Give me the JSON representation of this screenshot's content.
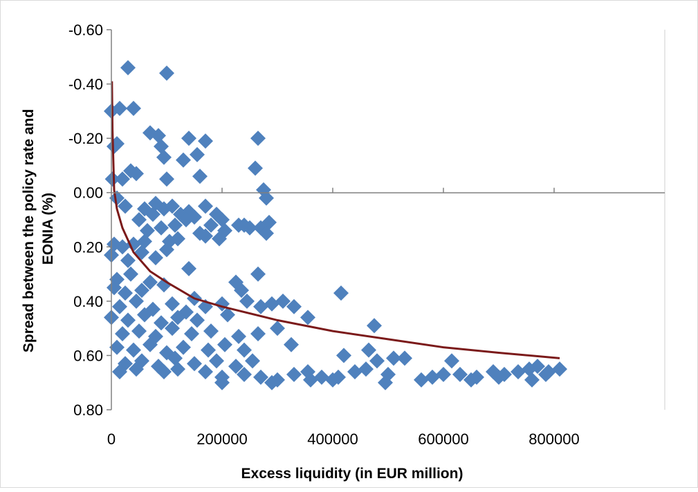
{
  "chart_data": {
    "type": "scatter",
    "xlabel": "Excess liquidity (in EUR million)",
    "ylabel": "Spread between the policy rate and EONIA (%)",
    "ylabel_lines": [
      "Spread between the policy rate and",
      "EONIA (%)"
    ],
    "x_ticks": [
      "0",
      "200000",
      "400000",
      "600000",
      "800000"
    ],
    "y_ticks": [
      "-0.60",
      "-0.40",
      "-0.20",
      "0.00",
      "0.20",
      "0.40",
      "0.60",
      "0.80"
    ],
    "xlim": [
      0,
      1000000
    ],
    "ylim": [
      -0.6,
      0.8
    ],
    "y_axis_inverted": true,
    "grid": false,
    "legend": "none",
    "colors": {
      "markers": "#4f81bd",
      "trendline": "#7b1a1a"
    },
    "series": [
      {
        "marker": "diamond",
        "points": [
          [
            30000,
            -0.46
          ],
          [
            100000,
            -0.44
          ],
          [
            0,
            -0.3
          ],
          [
            15000,
            -0.31
          ],
          [
            40000,
            -0.31
          ],
          [
            70000,
            -0.22
          ],
          [
            85000,
            -0.21
          ],
          [
            140000,
            -0.2
          ],
          [
            170000,
            -0.19
          ],
          [
            265000,
            -0.2
          ],
          [
            5000,
            -0.17
          ],
          [
            10000,
            -0.18
          ],
          [
            90000,
            -0.17
          ],
          [
            95000,
            -0.13
          ],
          [
            130000,
            -0.12
          ],
          [
            155000,
            -0.14
          ],
          [
            260000,
            -0.09
          ],
          [
            2000,
            -0.05
          ],
          [
            20000,
            -0.05
          ],
          [
            35000,
            -0.08
          ],
          [
            45000,
            -0.07
          ],
          [
            100000,
            -0.05
          ],
          [
            160000,
            -0.06
          ],
          [
            275000,
            -0.01
          ],
          [
            10000,
            0.02
          ],
          [
            25000,
            0.05
          ],
          [
            60000,
            0.06
          ],
          [
            80000,
            0.04
          ],
          [
            95000,
            0.06
          ],
          [
            110000,
            0.05
          ],
          [
            125000,
            0.08
          ],
          [
            140000,
            0.07
          ],
          [
            170000,
            0.05
          ],
          [
            190000,
            0.08
          ],
          [
            280000,
            0.02
          ],
          [
            50000,
            0.1
          ],
          [
            75000,
            0.08
          ],
          [
            115000,
            0.12
          ],
          [
            135000,
            0.1
          ],
          [
            150000,
            0.09
          ],
          [
            180000,
            0.12
          ],
          [
            200000,
            0.1
          ],
          [
            230000,
            0.12
          ],
          [
            250000,
            0.13
          ],
          [
            285000,
            0.11
          ],
          [
            65000,
            0.14
          ],
          [
            90000,
            0.13
          ],
          [
            160000,
            0.15
          ],
          [
            205000,
            0.14
          ],
          [
            240000,
            0.12
          ],
          [
            270000,
            0.13
          ],
          [
            280000,
            0.15
          ],
          [
            5000,
            0.19
          ],
          [
            20000,
            0.2
          ],
          [
            40000,
            0.19
          ],
          [
            60000,
            0.18
          ],
          [
            105000,
            0.18
          ],
          [
            120000,
            0.17
          ],
          [
            170000,
            0.16
          ],
          [
            195000,
            0.17
          ],
          [
            0,
            0.23
          ],
          [
            30000,
            0.25
          ],
          [
            55000,
            0.22
          ],
          [
            80000,
            0.24
          ],
          [
            100000,
            0.21
          ],
          [
            140000,
            0.28
          ],
          [
            265000,
            0.3
          ],
          [
            10000,
            0.32
          ],
          [
            35000,
            0.3
          ],
          [
            70000,
            0.33
          ],
          [
            225000,
            0.33
          ],
          [
            5000,
            0.35
          ],
          [
            25000,
            0.37
          ],
          [
            55000,
            0.36
          ],
          [
            95000,
            0.34
          ],
          [
            150000,
            0.39
          ],
          [
            235000,
            0.36
          ],
          [
            415000,
            0.37
          ],
          [
            15000,
            0.42
          ],
          [
            45000,
            0.4
          ],
          [
            75000,
            0.43
          ],
          [
            110000,
            0.41
          ],
          [
            135000,
            0.44
          ],
          [
            170000,
            0.42
          ],
          [
            200000,
            0.41
          ],
          [
            245000,
            0.4
          ],
          [
            270000,
            0.42
          ],
          [
            290000,
            0.41
          ],
          [
            310000,
            0.4
          ],
          [
            330000,
            0.42
          ],
          [
            0,
            0.46
          ],
          [
            30000,
            0.47
          ],
          [
            60000,
            0.45
          ],
          [
            90000,
            0.48
          ],
          [
            120000,
            0.46
          ],
          [
            155000,
            0.47
          ],
          [
            210000,
            0.45
          ],
          [
            355000,
            0.46
          ],
          [
            475000,
            0.49
          ],
          [
            20000,
            0.52
          ],
          [
            50000,
            0.51
          ],
          [
            80000,
            0.53
          ],
          [
            110000,
            0.5
          ],
          [
            145000,
            0.52
          ],
          [
            180000,
            0.51
          ],
          [
            230000,
            0.53
          ],
          [
            265000,
            0.52
          ],
          [
            300000,
            0.5
          ],
          [
            10000,
            0.57
          ],
          [
            40000,
            0.58
          ],
          [
            70000,
            0.56
          ],
          [
            100000,
            0.59
          ],
          [
            130000,
            0.57
          ],
          [
            175000,
            0.58
          ],
          [
            205000,
            0.56
          ],
          [
            240000,
            0.58
          ],
          [
            325000,
            0.56
          ],
          [
            465000,
            0.58
          ],
          [
            25000,
            0.63
          ],
          [
            55000,
            0.62
          ],
          [
            85000,
            0.64
          ],
          [
            115000,
            0.61
          ],
          [
            150000,
            0.63
          ],
          [
            190000,
            0.62
          ],
          [
            225000,
            0.64
          ],
          [
            255000,
            0.62
          ],
          [
            420000,
            0.6
          ],
          [
            480000,
            0.62
          ],
          [
            510000,
            0.61
          ],
          [
            530000,
            0.61
          ],
          [
            615000,
            0.62
          ],
          [
            15000,
            0.66
          ],
          [
            45000,
            0.65
          ],
          [
            95000,
            0.66
          ],
          [
            120000,
            0.65
          ],
          [
            170000,
            0.66
          ],
          [
            200000,
            0.68
          ],
          [
            240000,
            0.67
          ],
          [
            270000,
            0.68
          ],
          [
            300000,
            0.69
          ],
          [
            330000,
            0.67
          ],
          [
            355000,
            0.66
          ],
          [
            380000,
            0.68
          ],
          [
            400000,
            0.69
          ],
          [
            440000,
            0.66
          ],
          [
            460000,
            0.65
          ],
          [
            500000,
            0.67
          ],
          [
            580000,
            0.68
          ],
          [
            600000,
            0.67
          ],
          [
            630000,
            0.67
          ],
          [
            660000,
            0.68
          ],
          [
            690000,
            0.66
          ],
          [
            710000,
            0.67
          ],
          [
            735000,
            0.66
          ],
          [
            755000,
            0.65
          ],
          [
            770000,
            0.64
          ],
          [
            790000,
            0.66
          ],
          [
            810000,
            0.65
          ],
          [
            200000,
            0.7
          ],
          [
            290000,
            0.7
          ],
          [
            360000,
            0.69
          ],
          [
            410000,
            0.68
          ],
          [
            495000,
            0.7
          ],
          [
            560000,
            0.69
          ],
          [
            650000,
            0.69
          ],
          [
            700000,
            0.68
          ],
          [
            760000,
            0.69
          ],
          [
            785000,
            0.67
          ]
        ]
      }
    ],
    "trendline": {
      "type": "logarithmic",
      "points": [
        [
          1000,
          -0.41
        ],
        [
          2000,
          -0.23
        ],
        [
          5000,
          -0.01
        ],
        [
          10000,
          0.06
        ],
        [
          20000,
          0.13
        ],
        [
          40000,
          0.22
        ],
        [
          70000,
          0.29
        ],
        [
          100000,
          0.33
        ],
        [
          150000,
          0.39
        ],
        [
          200000,
          0.42
        ],
        [
          300000,
          0.47
        ],
        [
          400000,
          0.51
        ],
        [
          500000,
          0.54
        ],
        [
          600000,
          0.57
        ],
        [
          700000,
          0.59
        ],
        [
          810000,
          0.61
        ]
      ]
    }
  }
}
